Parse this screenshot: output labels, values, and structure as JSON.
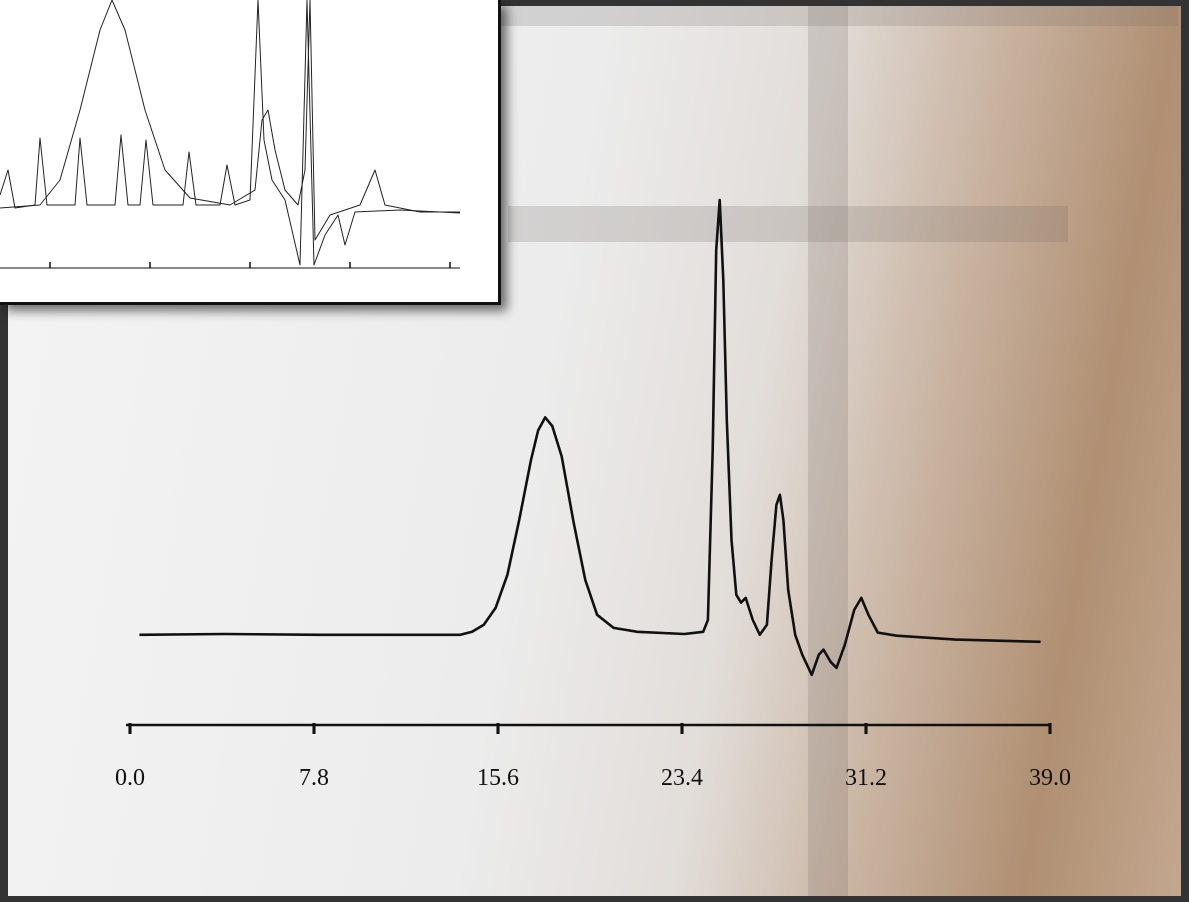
{
  "chart_data": [
    {
      "type": "line",
      "color": "#111111",
      "x": [
        0.4,
        4.0,
        8.0,
        14.0,
        14.5,
        15.0,
        15.5,
        16.0,
        16.5,
        17.0,
        17.3,
        17.6,
        17.9,
        18.3,
        18.8,
        19.3,
        19.8,
        20.5,
        21.5,
        23.5,
        24.3,
        24.5,
        24.7,
        24.85,
        25.0,
        25.15,
        25.3,
        25.5,
        25.7,
        25.9,
        26.1,
        26.4,
        26.7,
        27.0,
        27.2,
        27.4,
        27.55,
        27.7,
        27.9,
        28.2,
        28.5,
        28.9,
        29.2,
        29.4,
        29.7,
        29.95,
        30.3,
        30.7,
        31.0,
        31.3,
        31.7,
        32.5,
        35.0,
        38.6
      ],
      "values": [
        0,
        0.2,
        0,
        0,
        0.7,
        2.3,
        6.2,
        13.8,
        26.4,
        40.2,
        47,
        50,
        48,
        41,
        26,
        12.6,
        4.6,
        1.6,
        0.7,
        0.2,
        0.7,
        3.4,
        42.5,
        88.5,
        100,
        81.6,
        49.4,
        21.8,
        9.2,
        7.4,
        8.5,
        3.4,
        0,
        2.3,
        17.2,
        29.9,
        32.2,
        26.4,
        10.3,
        0,
        -4.6,
        -9.2,
        -4.6,
        -3.4,
        -6.2,
        -7.6,
        -2.3,
        5.7,
        8.5,
        4.6,
        0.5,
        -0.2,
        -1.1,
        -1.6
      ],
      "xlim": [
        0,
        39
      ],
      "ylim": [
        -12,
        100
      ],
      "xticks": [
        {
          "value": 0,
          "label": "0.0"
        },
        7.8,
        15.6,
        23.4,
        31.2,
        {
          "value": 39,
          "label": "39.0"
        }
      ]
    },
    {
      "type": "line",
      "xlim": [
        0,
        46
      ],
      "ylim": [
        -30,
        104
      ],
      "xticks": [
        5,
        15,
        25,
        35,
        45
      ],
      "series": [
        {
          "color": "#222222",
          "x": [
            0,
            4,
            6,
            8,
            10,
            11.2,
            12.5,
            14.5,
            16.5,
            19,
            23,
            25.5,
            26.2,
            26.8,
            27.5,
            28.5,
            29.8,
            30.5,
            31,
            31.5,
            33,
            34.5,
            36,
            37.5,
            38.5,
            42,
            46
          ],
          "values": [
            0,
            1.5,
            14,
            49,
            89,
            104,
            89,
            49,
            19,
            5,
            1.5,
            9,
            44,
            49,
            29,
            9,
            1.5,
            19,
            104,
            -16,
            -3.5,
            -1,
            1.5,
            19,
            1.5,
            -2,
            -2
          ]
        },
        {
          "color": "#222222",
          "x": [
            0,
            0.8,
            1.5,
            3.5,
            4,
            4.7,
            7.5,
            8,
            8.7,
            11.5,
            12.1,
            12.8,
            14,
            14.6,
            15.3,
            18.3,
            18.9,
            19.6,
            22,
            22.7,
            23.5,
            25,
            25.8,
            26.4,
            27.2,
            28.5,
            30,
            30.7,
            31.4,
            32.5,
            33.8,
            34.5,
            35.5,
            40,
            46
          ],
          "values": [
            6.5,
            19,
            0,
            1.5,
            35,
            1.5,
            1.5,
            35,
            1.5,
            1.5,
            36.5,
            1.5,
            1.5,
            34,
            1.5,
            1.5,
            28,
            1.5,
            1.5,
            21.5,
            1.5,
            4,
            104,
            34,
            14,
            4,
            -28.5,
            104,
            -28.5,
            -13.5,
            -3.5,
            -18.5,
            -2,
            -1,
            -2.5
          ]
        }
      ]
    }
  ]
}
